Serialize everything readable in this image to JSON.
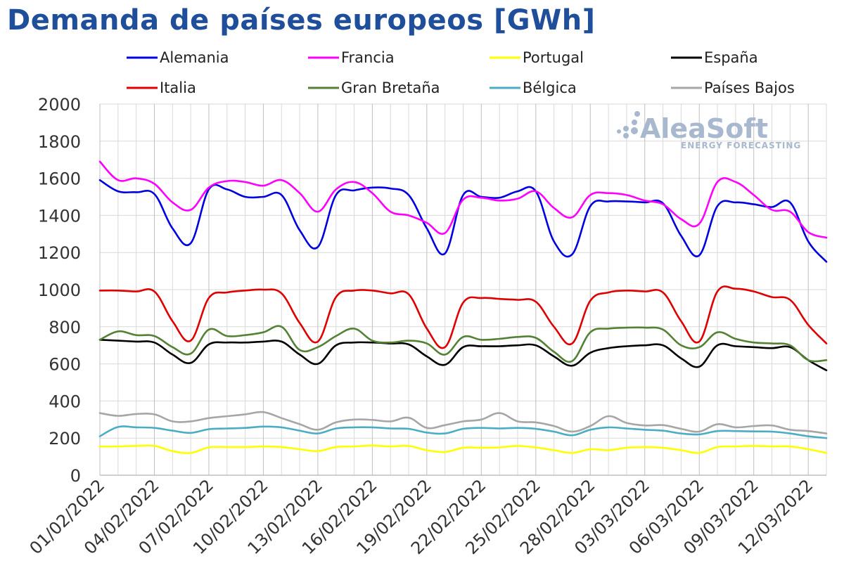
{
  "chart_data": {
    "type": "line",
    "title": "Demanda de países europeos [GWh]",
    "watermark": {
      "main": "AleaSoft",
      "sub": "ENERGY FORECASTING"
    },
    "ylim": [
      0,
      2000
    ],
    "yticks": [
      0,
      200,
      400,
      600,
      800,
      1000,
      1200,
      1400,
      1600,
      1800,
      2000
    ],
    "x": [
      "01/02/2022",
      "02/02/2022",
      "03/02/2022",
      "04/02/2022",
      "05/02/2022",
      "06/02/2022",
      "07/02/2022",
      "08/02/2022",
      "09/02/2022",
      "10/02/2022",
      "11/02/2022",
      "12/02/2022",
      "13/02/2022",
      "14/02/2022",
      "15/02/2022",
      "16/02/2022",
      "17/02/2022",
      "18/02/2022",
      "19/02/2022",
      "20/02/2022",
      "21/02/2022",
      "22/02/2022",
      "23/02/2022",
      "24/02/2022",
      "25/02/2022",
      "26/02/2022",
      "27/02/2022",
      "28/02/2022",
      "01/03/2022",
      "02/03/2022",
      "03/03/2022",
      "04/03/2022",
      "05/03/2022",
      "06/03/2022",
      "07/03/2022",
      "08/03/2022",
      "09/03/2022",
      "10/03/2022",
      "11/03/2022",
      "12/03/2022",
      "13/03/2022"
    ],
    "xtick_labels": [
      "01/02/2022",
      "04/02/2022",
      "07/02/2022",
      "10/02/2022",
      "13/02/2022",
      "16/02/2022",
      "19/02/2022",
      "22/02/2022",
      "25/02/2022",
      "28/02/2022",
      "03/03/2022",
      "06/03/2022",
      "09/03/2022",
      "12/03/2022"
    ],
    "grid": true,
    "legend_position": "top",
    "series": [
      {
        "name": "Alemania",
        "color": "#0000e0",
        "values": [
          1590,
          1530,
          1525,
          1515,
          1330,
          1250,
          1540,
          1540,
          1500,
          1500,
          1510,
          1320,
          1230,
          1510,
          1535,
          1550,
          1545,
          1510,
          1330,
          1195,
          1510,
          1500,
          1495,
          1530,
          1530,
          1260,
          1190,
          1450,
          1475,
          1475,
          1470,
          1465,
          1290,
          1185,
          1450,
          1470,
          1460,
          1445,
          1470,
          1260,
          1150
        ]
      },
      {
        "name": "Francia",
        "color": "#ff00ff",
        "values": [
          1690,
          1590,
          1600,
          1570,
          1470,
          1430,
          1550,
          1585,
          1580,
          1560,
          1590,
          1520,
          1420,
          1540,
          1580,
          1520,
          1420,
          1400,
          1360,
          1305,
          1485,
          1495,
          1480,
          1490,
          1530,
          1440,
          1390,
          1510,
          1520,
          1510,
          1480,
          1460,
          1380,
          1355,
          1580,
          1580,
          1510,
          1430,
          1420,
          1310,
          1280
        ]
      },
      {
        "name": "Portugal",
        "color": "#ffff00",
        "values": [
          155,
          155,
          158,
          158,
          130,
          120,
          150,
          152,
          152,
          155,
          152,
          140,
          130,
          152,
          155,
          160,
          155,
          158,
          135,
          125,
          148,
          148,
          150,
          158,
          150,
          135,
          120,
          140,
          135,
          148,
          152,
          148,
          135,
          120,
          152,
          155,
          158,
          155,
          155,
          140,
          120
        ]
      },
      {
        "name": "España",
        "color": "#000000",
        "values": [
          730,
          725,
          720,
          715,
          650,
          605,
          705,
          715,
          715,
          720,
          720,
          650,
          600,
          700,
          715,
          715,
          710,
          705,
          640,
          595,
          690,
          695,
          695,
          700,
          700,
          640,
          590,
          660,
          685,
          695,
          700,
          700,
          630,
          585,
          700,
          695,
          690,
          685,
          690,
          620,
          565
        ]
      },
      {
        "name": "Italia",
        "color": "#e00000",
        "values": [
          995,
          995,
          990,
          990,
          830,
          725,
          955,
          985,
          995,
          1000,
          980,
          820,
          720,
          960,
          995,
          995,
          980,
          975,
          790,
          690,
          930,
          955,
          950,
          945,
          935,
          800,
          710,
          940,
          985,
          995,
          990,
          985,
          830,
          720,
          990,
          1005,
          990,
          960,
          945,
          810,
          710
        ]
      },
      {
        "name": "Gran Bretaña",
        "color": "#548235",
        "values": [
          730,
          775,
          755,
          750,
          690,
          655,
          785,
          750,
          755,
          770,
          800,
          675,
          690,
          750,
          790,
          725,
          715,
          725,
          710,
          650,
          745,
          730,
          735,
          745,
          740,
          665,
          615,
          770,
          790,
          795,
          795,
          785,
          700,
          690,
          770,
          735,
          715,
          710,
          700,
          620,
          620
        ]
      },
      {
        "name": "Bélgica",
        "color": "#4bacc6",
        "values": [
          210,
          260,
          258,
          255,
          240,
          228,
          248,
          252,
          255,
          262,
          258,
          240,
          225,
          252,
          258,
          258,
          252,
          250,
          230,
          225,
          250,
          255,
          252,
          255,
          250,
          235,
          215,
          245,
          258,
          252,
          245,
          240,
          225,
          220,
          238,
          238,
          236,
          235,
          225,
          210,
          200
        ]
      },
      {
        "name": "Países Bajos",
        "color": "#a6a6a6",
        "values": [
          335,
          320,
          330,
          328,
          290,
          290,
          308,
          318,
          328,
          340,
          308,
          275,
          245,
          285,
          300,
          298,
          290,
          310,
          255,
          270,
          290,
          300,
          335,
          290,
          285,
          265,
          235,
          265,
          318,
          282,
          268,
          270,
          250,
          235,
          275,
          258,
          265,
          268,
          245,
          238,
          225
        ]
      }
    ]
  }
}
